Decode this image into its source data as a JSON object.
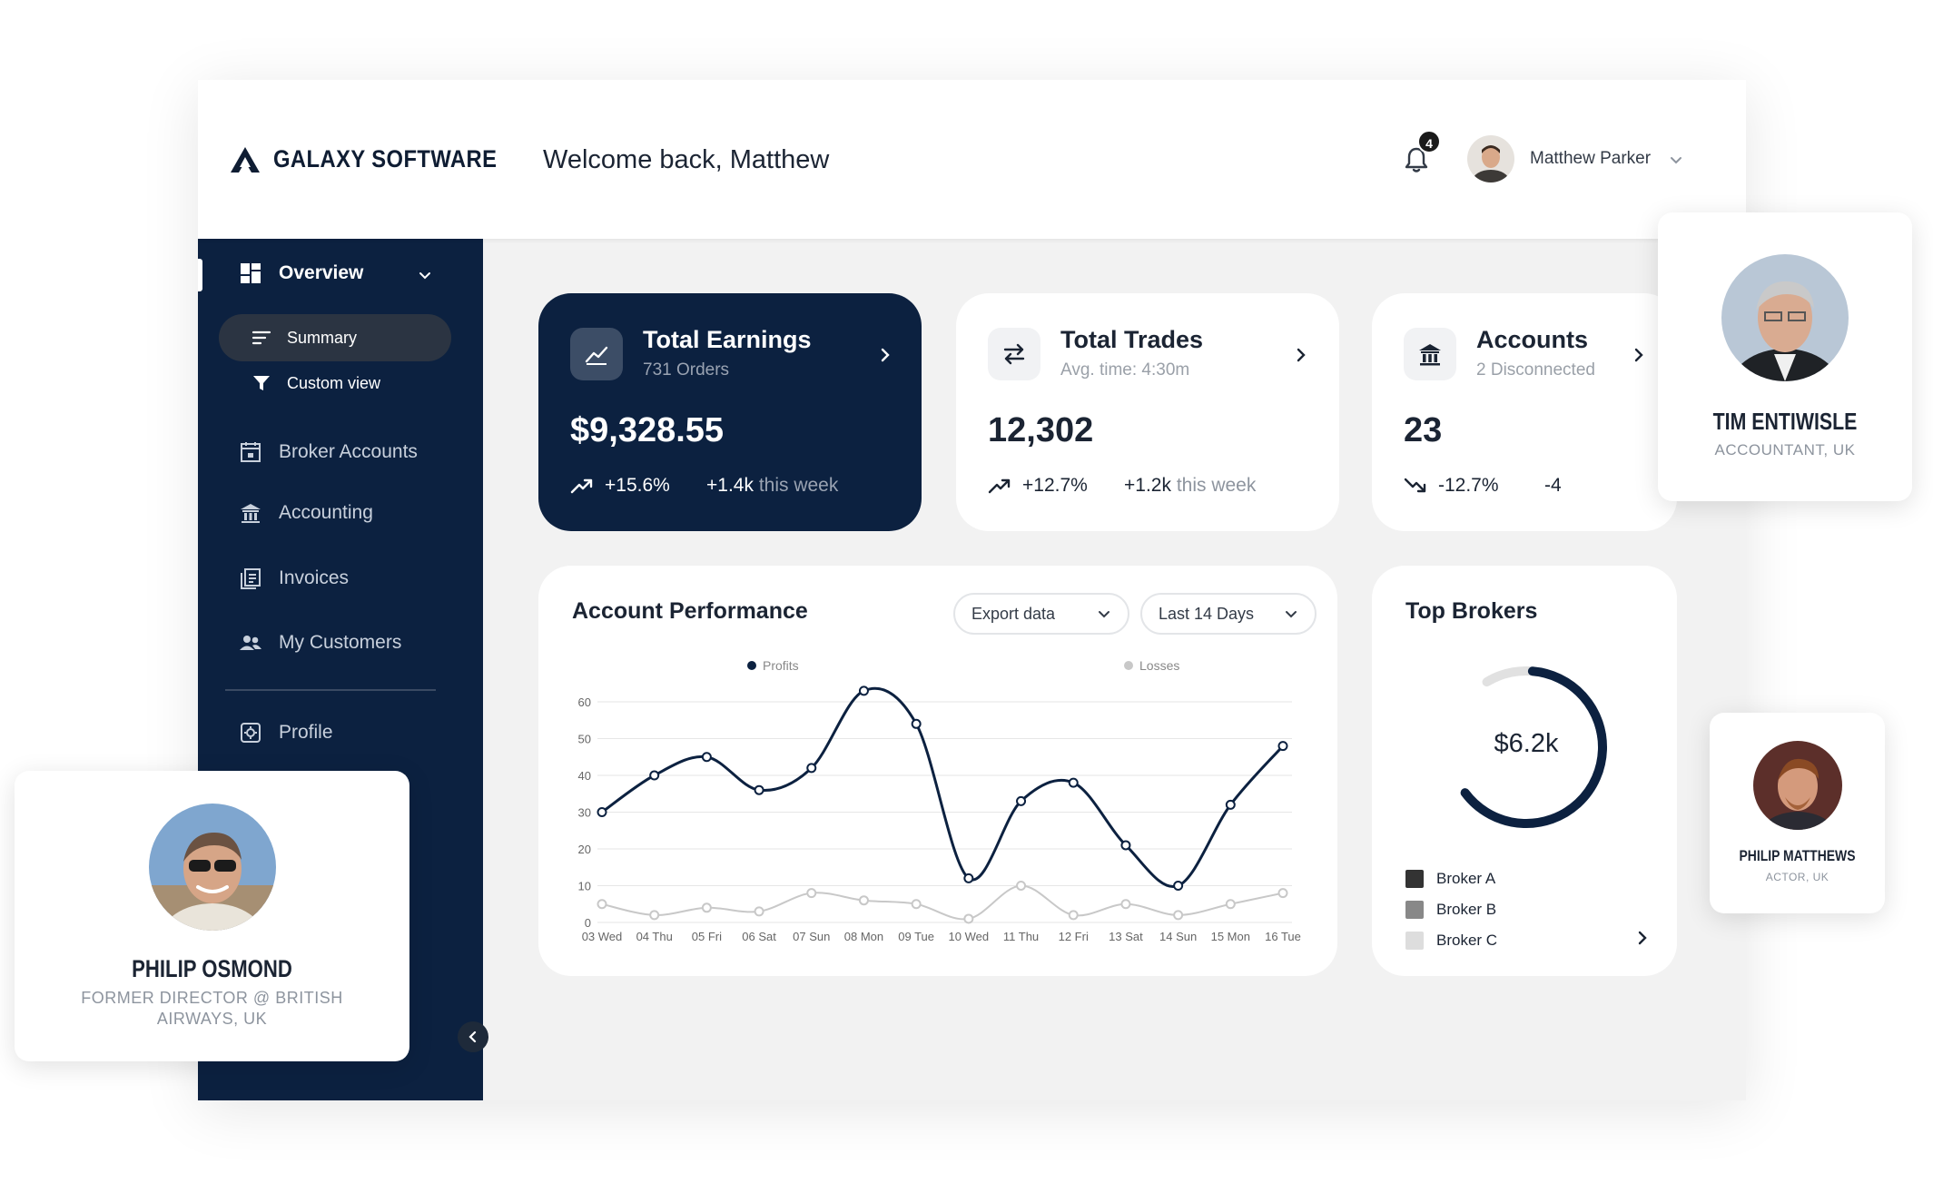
{
  "brand": {
    "name": "GALAXY SOFTWARE"
  },
  "header": {
    "welcome": "Welcome back, Matthew",
    "notifications": "4",
    "user_name": "Matthew Parker"
  },
  "sidebar": {
    "overview": "Overview",
    "sub_items": [
      {
        "label": "Summary"
      },
      {
        "label": "Custom view"
      }
    ],
    "items": [
      {
        "label": "Broker Accounts"
      },
      {
        "label": "Accounting"
      },
      {
        "label": "Invoices"
      },
      {
        "label": "My Customers"
      },
      {
        "label": "Profile"
      }
    ]
  },
  "stats": [
    {
      "title": "Total Earnings",
      "sub": "731 Orders",
      "value": "$9,328.55",
      "trend": "+15.6%",
      "extra_bold": "+1.4k",
      "extra_muted": "this week"
    },
    {
      "title": "Total Trades",
      "sub": "Avg. time: 4:30m",
      "value": "12,302",
      "trend": "+12.7%",
      "extra_bold": "+1.2k",
      "extra_muted": "this week"
    },
    {
      "title": "Accounts",
      "sub": "2 Disconnected",
      "value": "23",
      "trend": "-12.7%",
      "extra_bold": "-4",
      "extra_muted": ""
    }
  ],
  "performance": {
    "title": "Account Performance",
    "export_label": "Export data",
    "range_label": "Last 14 Days"
  },
  "chart_data": {
    "type": "line",
    "x": [
      "03 Wed",
      "04 Thu",
      "05 Fri",
      "06 Sat",
      "07 Sun",
      "08 Mon",
      "09 Tue",
      "10 Wed",
      "11 Thu",
      "12 Fri",
      "13 Sat",
      "14 Sun",
      "15 Mon",
      "16 Tue"
    ],
    "series": [
      {
        "name": "Profits",
        "color": "#0c2140",
        "values": [
          30,
          40,
          45,
          36,
          42,
          63,
          54,
          12,
          33,
          38,
          21,
          10,
          32,
          48
        ]
      },
      {
        "name": "Losses",
        "color": "#c8c8c8",
        "values": [
          5,
          2,
          4,
          3,
          8,
          6,
          5,
          1,
          10,
          2,
          5,
          2,
          5,
          8
        ]
      }
    ],
    "yticks": [
      0,
      10,
      20,
      30,
      40,
      50,
      60
    ],
    "ylim": [
      0,
      65
    ],
    "grid": true,
    "legend": "top"
  },
  "brokers": {
    "title": "Top Brokers",
    "total": "$6.2k",
    "legend": [
      {
        "label": "Broker A",
        "color": "#333333"
      },
      {
        "label": "Broker B",
        "color": "#888888"
      },
      {
        "label": "Broker C",
        "color": "#dddddd"
      }
    ]
  },
  "profiles": [
    {
      "name": "TIM ENTIWISLE",
      "role": "ACCOUNTANT, UK"
    },
    {
      "name": "PHILIP MATTHEWS",
      "role": "ACTOR, UK"
    },
    {
      "name": "PHILIP OSMOND",
      "role": "FORMER DIRECTOR @ BRITISH AIRWAYS, UK"
    }
  ]
}
